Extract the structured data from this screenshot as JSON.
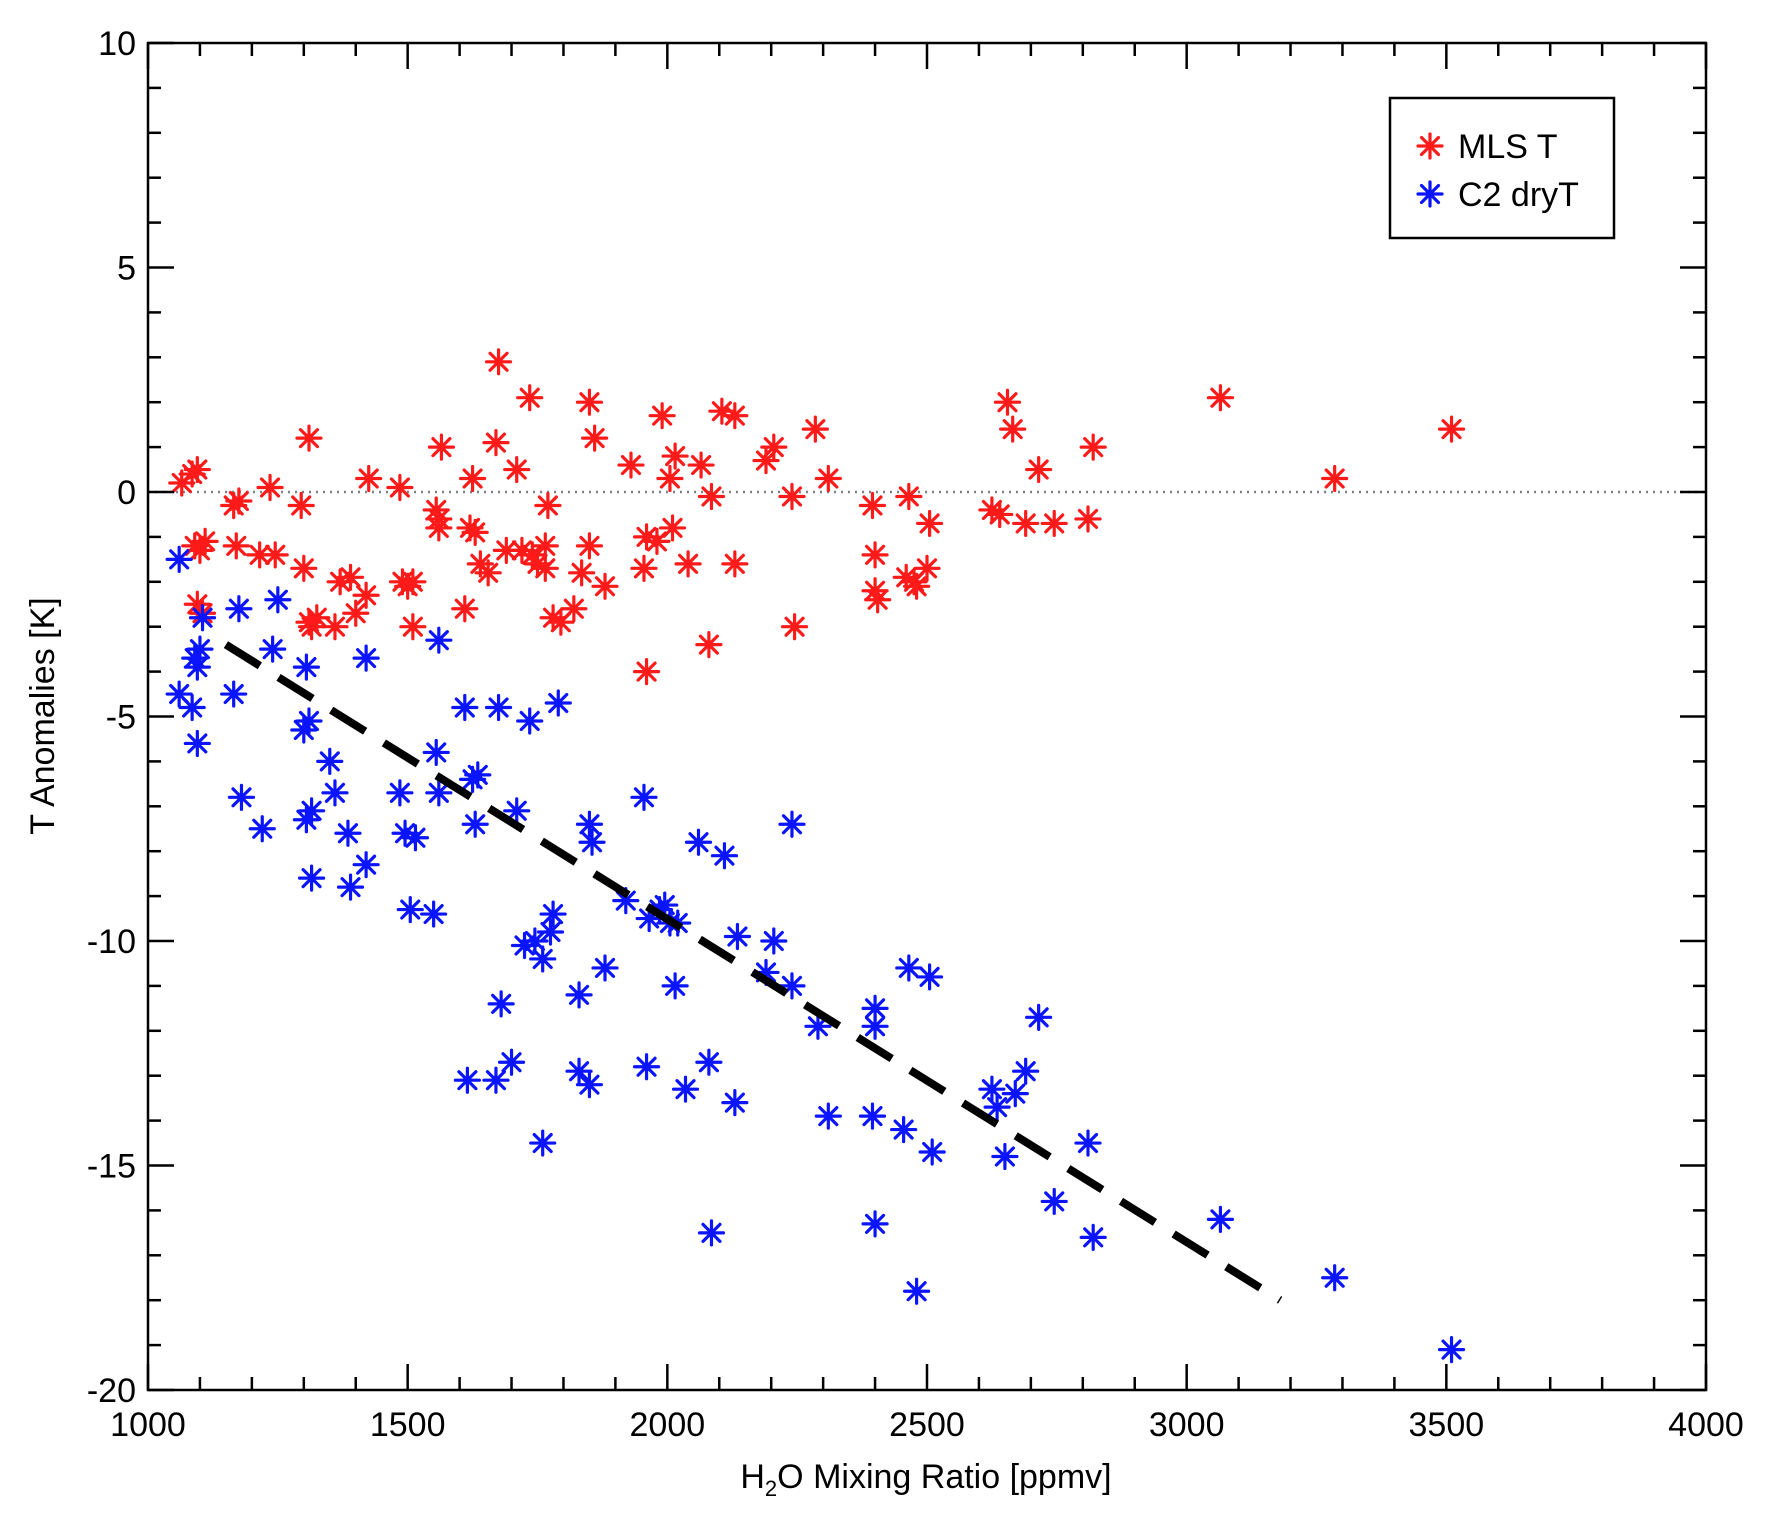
{
  "chart_data": {
    "type": "scatter",
    "title": "",
    "xlabel": {
      "main": "H",
      "sub": "2",
      "rest": "O Mixing Ratio [ppmv]"
    },
    "ylabel": "T Anomalies [K]",
    "xlim": [
      1000,
      4000
    ],
    "ylim": [
      -20,
      10
    ],
    "xticks": [
      1000,
      1500,
      2000,
      2500,
      3000,
      3500,
      4000
    ],
    "yticks": [
      10,
      5,
      0,
      -5,
      -10,
      -15,
      -20
    ],
    "zero_line": {
      "y": 0,
      "style": "dotted",
      "color": "#808080"
    },
    "legend": {
      "position": "top-right",
      "entries": [
        {
          "label": "MLS T",
          "color": "#ff1a1a"
        },
        {
          "label": "C2 dryT",
          "color": "#0a14ff"
        }
      ]
    },
    "fit_line": {
      "style": "dashed",
      "color": "#000000",
      "x": [
        1150,
        3180
      ],
      "y": [
        -3.4,
        -18.0
      ]
    },
    "series": [
      {
        "name": "MLS T",
        "color": "#ff1a1a",
        "marker": "asterisk",
        "points": [
          [
            1065,
            0.2
          ],
          [
            1085,
            0.4
          ],
          [
            1095,
            0.5
          ],
          [
            1090,
            -1.2
          ],
          [
            1100,
            -1.3
          ],
          [
            1110,
            -1.1
          ],
          [
            1095,
            -2.5
          ],
          [
            1105,
            -2.7
          ],
          [
            1165,
            -0.3
          ],
          [
            1175,
            -0.2
          ],
          [
            1170,
            -1.2
          ],
          [
            1215,
            -1.4
          ],
          [
            1245,
            -1.4
          ],
          [
            1235,
            0.1
          ],
          [
            1295,
            -0.3
          ],
          [
            1310,
            1.2
          ],
          [
            1300,
            -1.7
          ],
          [
            1310,
            -2.9
          ],
          [
            1315,
            -3.0
          ],
          [
            1325,
            -2.8
          ],
          [
            1360,
            -3.0
          ],
          [
            1370,
            -2.0
          ],
          [
            1390,
            -1.9
          ],
          [
            1400,
            -2.7
          ],
          [
            1420,
            -2.3
          ],
          [
            1425,
            0.3
          ],
          [
            1485,
            0.1
          ],
          [
            1490,
            -2.0
          ],
          [
            1500,
            -2.1
          ],
          [
            1510,
            -2.0
          ],
          [
            1510,
            -3.0
          ],
          [
            1555,
            -0.4
          ],
          [
            1560,
            -0.6
          ],
          [
            1565,
            1.0
          ],
          [
            1560,
            -0.8
          ],
          [
            1610,
            -2.6
          ],
          [
            1620,
            -0.8
          ],
          [
            1625,
            0.3
          ],
          [
            1630,
            -0.9
          ],
          [
            1640,
            -1.6
          ],
          [
            1655,
            -1.8
          ],
          [
            1670,
            1.1
          ],
          [
            1675,
            2.9
          ],
          [
            1690,
            -1.3
          ],
          [
            1710,
            0.5
          ],
          [
            1720,
            -1.3
          ],
          [
            1735,
            2.1
          ],
          [
            1740,
            -1.4
          ],
          [
            1750,
            -1.6
          ],
          [
            1765,
            -1.2
          ],
          [
            1770,
            -0.3
          ],
          [
            1765,
            -1.7
          ],
          [
            1780,
            -2.8
          ],
          [
            1795,
            -2.9
          ],
          [
            1820,
            -2.6
          ],
          [
            1835,
            -1.8
          ],
          [
            1850,
            -1.2
          ],
          [
            1850,
            2.0
          ],
          [
            1860,
            1.2
          ],
          [
            1880,
            -2.1
          ],
          [
            1930,
            0.6
          ],
          [
            1955,
            -1.7
          ],
          [
            1960,
            -1.0
          ],
          [
            1960,
            -4.0
          ],
          [
            1980,
            -1.1
          ],
          [
            1990,
            1.7
          ],
          [
            2005,
            0.3
          ],
          [
            2010,
            -0.8
          ],
          [
            2015,
            0.8
          ],
          [
            2040,
            -1.6
          ],
          [
            2065,
            0.6
          ],
          [
            2080,
            -3.4
          ],
          [
            2085,
            -0.1
          ],
          [
            2105,
            1.8
          ],
          [
            2130,
            1.7
          ],
          [
            2130,
            -1.6
          ],
          [
            2190,
            0.7
          ],
          [
            2205,
            1.0
          ],
          [
            2240,
            -0.1
          ],
          [
            2245,
            -3.0
          ],
          [
            2285,
            1.4
          ],
          [
            2310,
            0.3
          ],
          [
            2395,
            -0.3
          ],
          [
            2400,
            -1.4
          ],
          [
            2400,
            -2.2
          ],
          [
            2405,
            -2.4
          ],
          [
            2465,
            -0.1
          ],
          [
            2460,
            -1.9
          ],
          [
            2475,
            -2.0
          ],
          [
            2480,
            -2.1
          ],
          [
            2500,
            -1.7
          ],
          [
            2505,
            -0.7
          ],
          [
            2625,
            -0.4
          ],
          [
            2640,
            -0.5
          ],
          [
            2655,
            2.0
          ],
          [
            2665,
            1.4
          ],
          [
            2690,
            -0.7
          ],
          [
            2715,
            0.5
          ],
          [
            2745,
            -0.7
          ],
          [
            2810,
            -0.6
          ],
          [
            2820,
            1.0
          ],
          [
            3065,
            2.1
          ],
          [
            3285,
            0.3
          ],
          [
            3510,
            1.4
          ]
        ]
      },
      {
        "name": "C2 dryT",
        "color": "#0a14ff",
        "marker": "asterisk",
        "points": [
          [
            1060,
            -1.5
          ],
          [
            1060,
            -4.5
          ],
          [
            1090,
            -3.7
          ],
          [
            1095,
            -3.9
          ],
          [
            1100,
            -3.5
          ],
          [
            1085,
            -4.8
          ],
          [
            1095,
            -5.6
          ],
          [
            1105,
            -2.8
          ],
          [
            1165,
            -4.5
          ],
          [
            1175,
            -2.6
          ],
          [
            1180,
            -6.8
          ],
          [
            1220,
            -7.5
          ],
          [
            1240,
            -3.5
          ],
          [
            1250,
            -2.4
          ],
          [
            1305,
            -3.9
          ],
          [
            1300,
            -5.3
          ],
          [
            1310,
            -5.1
          ],
          [
            1305,
            -7.3
          ],
          [
            1315,
            -7.1
          ],
          [
            1315,
            -8.6
          ],
          [
            1350,
            -6.0
          ],
          [
            1360,
            -6.7
          ],
          [
            1385,
            -7.6
          ],
          [
            1390,
            -8.8
          ],
          [
            1420,
            -3.7
          ],
          [
            1420,
            -8.3
          ],
          [
            1485,
            -6.7
          ],
          [
            1495,
            -7.6
          ],
          [
            1505,
            -9.3
          ],
          [
            1515,
            -7.7
          ],
          [
            1550,
            -9.4
          ],
          [
            1555,
            -5.8
          ],
          [
            1560,
            -6.7
          ],
          [
            1560,
            -3.3
          ],
          [
            1610,
            -4.8
          ],
          [
            1615,
            -13.1
          ],
          [
            1625,
            -6.4
          ],
          [
            1635,
            -6.3
          ],
          [
            1630,
            -7.4
          ],
          [
            1670,
            -13.1
          ],
          [
            1675,
            -4.8
          ],
          [
            1680,
            -11.4
          ],
          [
            1700,
            -12.7
          ],
          [
            1710,
            -7.1
          ],
          [
            1725,
            -10.1
          ],
          [
            1735,
            -5.1
          ],
          [
            1745,
            -10.0
          ],
          [
            1760,
            -10.4
          ],
          [
            1760,
            -14.5
          ],
          [
            1775,
            -9.8
          ],
          [
            1780,
            -9.4
          ],
          [
            1790,
            -4.7
          ],
          [
            1830,
            -11.2
          ],
          [
            1830,
            -12.9
          ],
          [
            1850,
            -7.4
          ],
          [
            1850,
            -13.2
          ],
          [
            1855,
            -7.8
          ],
          [
            1880,
            -10.6
          ],
          [
            1920,
            -9.1
          ],
          [
            1955,
            -6.8
          ],
          [
            1960,
            -12.8
          ],
          [
            1965,
            -9.5
          ],
          [
            1985,
            -9.3
          ],
          [
            1995,
            -9.2
          ],
          [
            2005,
            -9.6
          ],
          [
            2015,
            -11.0
          ],
          [
            2020,
            -9.6
          ],
          [
            2035,
            -13.3
          ],
          [
            2060,
            -7.8
          ],
          [
            2080,
            -12.7
          ],
          [
            2085,
            -16.5
          ],
          [
            2110,
            -8.1
          ],
          [
            2130,
            -13.6
          ],
          [
            2135,
            -9.9
          ],
          [
            2190,
            -10.7
          ],
          [
            2205,
            -10.0
          ],
          [
            2240,
            -7.4
          ],
          [
            2240,
            -11.0
          ],
          [
            2290,
            -11.9
          ],
          [
            2310,
            -13.9
          ],
          [
            2395,
            -13.9
          ],
          [
            2400,
            -11.5
          ],
          [
            2400,
            -11.9
          ],
          [
            2400,
            -16.3
          ],
          [
            2455,
            -14.2
          ],
          [
            2465,
            -10.6
          ],
          [
            2480,
            -17.8
          ],
          [
            2505,
            -10.8
          ],
          [
            2510,
            -14.7
          ],
          [
            2625,
            -13.3
          ],
          [
            2635,
            -13.7
          ],
          [
            2650,
            -14.8
          ],
          [
            2670,
            -13.4
          ],
          [
            2690,
            -12.9
          ],
          [
            2715,
            -11.7
          ],
          [
            2745,
            -15.8
          ],
          [
            2810,
            -14.5
          ],
          [
            2820,
            -16.6
          ],
          [
            3065,
            -16.2
          ],
          [
            3285,
            -17.5
          ],
          [
            3510,
            -19.1
          ]
        ]
      }
    ]
  }
}
